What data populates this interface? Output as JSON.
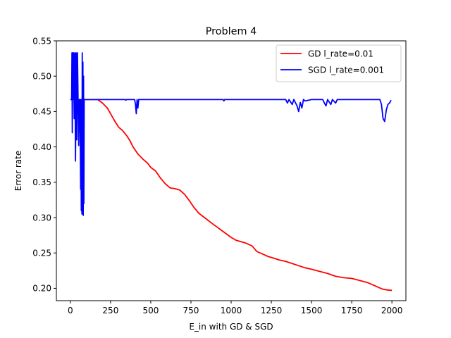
{
  "chart_data": {
    "type": "line",
    "title": "Problem 4",
    "xlabel": "E_in with GD & SGD",
    "ylabel": "Error rate",
    "xlim": [
      -87,
      2087
    ],
    "ylim": [
      0.1825,
      0.55
    ],
    "xticks": [
      0,
      250,
      500,
      750,
      1000,
      1250,
      1500,
      1750,
      2000
    ],
    "yticks": [
      0.2,
      0.25,
      0.3,
      0.35,
      0.4,
      0.45,
      0.5,
      0.55
    ],
    "ytick_labels": [
      "0.20",
      "0.25",
      "0.30",
      "0.35",
      "0.40",
      "0.45",
      "0.50",
      "0.55"
    ],
    "legend": "top-right",
    "grid": false,
    "series": [
      {
        "name": "GD l_rate=0.01",
        "color": "#ff0000",
        "points": [
          [
            0,
            0.467
          ],
          [
            100,
            0.467
          ],
          [
            170,
            0.467
          ],
          [
            200,
            0.462
          ],
          [
            230,
            0.455
          ],
          [
            250,
            0.447
          ],
          [
            275,
            0.437
          ],
          [
            300,
            0.428
          ],
          [
            325,
            0.423
          ],
          [
            350,
            0.416
          ],
          [
            370,
            0.409
          ],
          [
            390,
            0.4
          ],
          [
            420,
            0.39
          ],
          [
            450,
            0.383
          ],
          [
            480,
            0.377
          ],
          [
            500,
            0.371
          ],
          [
            530,
            0.366
          ],
          [
            560,
            0.356
          ],
          [
            590,
            0.348
          ],
          [
            620,
            0.342
          ],
          [
            650,
            0.341
          ],
          [
            680,
            0.339
          ],
          [
            710,
            0.333
          ],
          [
            740,
            0.324
          ],
          [
            770,
            0.314
          ],
          [
            800,
            0.306
          ],
          [
            840,
            0.299
          ],
          [
            880,
            0.292
          ],
          [
            910,
            0.287
          ],
          [
            940,
            0.282
          ],
          [
            970,
            0.277
          ],
          [
            1000,
            0.272
          ],
          [
            1030,
            0.268
          ],
          [
            1060,
            0.266
          ],
          [
            1090,
            0.264
          ],
          [
            1130,
            0.26
          ],
          [
            1160,
            0.252
          ],
          [
            1200,
            0.248
          ],
          [
            1230,
            0.245
          ],
          [
            1260,
            0.243
          ],
          [
            1300,
            0.24
          ],
          [
            1340,
            0.238
          ],
          [
            1380,
            0.235
          ],
          [
            1420,
            0.232
          ],
          [
            1460,
            0.229
          ],
          [
            1500,
            0.227
          ],
          [
            1550,
            0.224
          ],
          [
            1600,
            0.221
          ],
          [
            1650,
            0.217
          ],
          [
            1700,
            0.215
          ],
          [
            1750,
            0.214
          ],
          [
            1800,
            0.211
          ],
          [
            1850,
            0.208
          ],
          [
            1900,
            0.203
          ],
          [
            1940,
            0.199
          ],
          [
            1960,
            0.198
          ],
          [
            2000,
            0.197
          ]
        ]
      },
      {
        "name": "SGD l_rate=0.001",
        "color": "#0000ff",
        "points": [
          [
            0,
            0.467
          ],
          [
            8,
            0.467
          ],
          [
            10,
            0.533
          ],
          [
            12,
            0.42
          ],
          [
            14,
            0.533
          ],
          [
            16,
            0.467
          ],
          [
            20,
            0.533
          ],
          [
            24,
            0.44
          ],
          [
            28,
            0.533
          ],
          [
            32,
            0.38
          ],
          [
            36,
            0.533
          ],
          [
            40,
            0.41
          ],
          [
            44,
            0.533
          ],
          [
            48,
            0.467
          ],
          [
            52,
            0.402
          ],
          [
            56,
            0.467
          ],
          [
            60,
            0.467
          ],
          [
            64,
            0.34
          ],
          [
            66,
            0.467
          ],
          [
            68,
            0.31
          ],
          [
            70,
            0.46
          ],
          [
            72,
            0.305
          ],
          [
            74,
            0.533
          ],
          [
            76,
            0.31
          ],
          [
            78,
            0.52
          ],
          [
            80,
            0.303
          ],
          [
            82,
            0.5
          ],
          [
            84,
            0.32
          ],
          [
            86,
            0.467
          ],
          [
            100,
            0.467
          ],
          [
            200,
            0.467
          ],
          [
            340,
            0.467
          ],
          [
            345,
            0.466
          ],
          [
            350,
            0.467
          ],
          [
            400,
            0.467
          ],
          [
            405,
            0.46
          ],
          [
            410,
            0.447
          ],
          [
            415,
            0.467
          ],
          [
            420,
            0.455
          ],
          [
            425,
            0.467
          ],
          [
            950,
            0.467
          ],
          [
            955,
            0.465
          ],
          [
            960,
            0.467
          ],
          [
            1340,
            0.467
          ],
          [
            1350,
            0.462
          ],
          [
            1360,
            0.467
          ],
          [
            1380,
            0.46
          ],
          [
            1390,
            0.467
          ],
          [
            1410,
            0.458
          ],
          [
            1420,
            0.45
          ],
          [
            1430,
            0.463
          ],
          [
            1440,
            0.455
          ],
          [
            1450,
            0.467
          ],
          [
            1460,
            0.465
          ],
          [
            1500,
            0.467
          ],
          [
            1570,
            0.467
          ],
          [
            1580,
            0.462
          ],
          [
            1590,
            0.458
          ],
          [
            1600,
            0.467
          ],
          [
            1620,
            0.46
          ],
          [
            1630,
            0.467
          ],
          [
            1650,
            0.462
          ],
          [
            1660,
            0.467
          ],
          [
            1680,
            0.467
          ],
          [
            1925,
            0.467
          ],
          [
            1935,
            0.46
          ],
          [
            1945,
            0.44
          ],
          [
            1955,
            0.436
          ],
          [
            1965,
            0.452
          ],
          [
            1975,
            0.46
          ],
          [
            1985,
            0.462
          ],
          [
            1995,
            0.466
          ]
        ]
      }
    ]
  }
}
